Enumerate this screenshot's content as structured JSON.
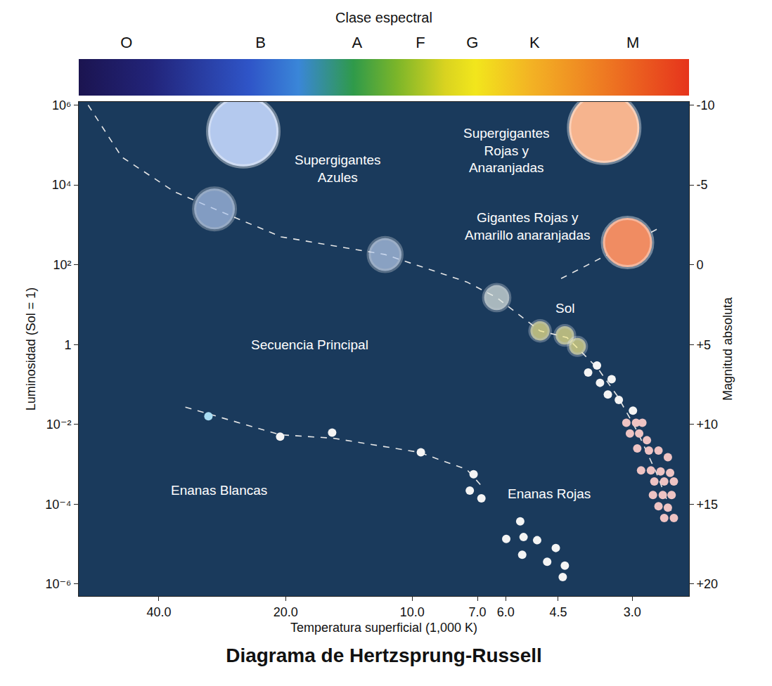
{
  "chart_data": {
    "type": "scatter",
    "title": "Diagrama de Hertzsprung-Russell",
    "xlabel": "Temperatura superficial (1,000 K)",
    "ylabel": "Luminosidad (Sol = 1)",
    "y2label": "Magnitud absoluta",
    "log": true,
    "grid": false,
    "xlim": [
      62,
      2.2
    ],
    "xticks": [
      {
        "value": 40,
        "label": "40.0"
      },
      {
        "value": 20,
        "label": "20.0"
      },
      {
        "value": 10,
        "label": "10.0"
      },
      {
        "value": 7,
        "label": "7.0"
      },
      {
        "value": 6,
        "label": "6.0"
      },
      4.5,
      {
        "value": 3,
        "label": "3.0"
      }
    ],
    "ylim": [
      5e-07,
      1200000
    ],
    "yticks": [
      {
        "value": 1e-06,
        "label": "10⁻⁶"
      },
      {
        "value": 0.0001,
        "label": "10⁻⁴"
      },
      {
        "value": 0.01,
        "label": "10⁻²"
      },
      1,
      {
        "value": 100,
        "label": "10²"
      },
      {
        "value": 10000,
        "label": "10⁴"
      },
      {
        "value": 1000000,
        "label": "10⁶"
      }
    ],
    "y2lim": [
      20.75,
      -10.2
    ],
    "y2ticks": [
      -10,
      -5,
      0,
      {
        "value": 5,
        "label": "+5"
      },
      {
        "value": 10,
        "label": "+10"
      },
      {
        "value": 15,
        "label": "+15"
      },
      {
        "value": 20,
        "label": "+20"
      }
    ],
    "spectral_class": {
      "title": "Clase espectral",
      "classes": [
        "O",
        "B",
        "A",
        "F",
        "G",
        "K",
        "M"
      ]
    },
    "annotations": [
      {
        "text": "Supergigantes\nAzules",
        "x": 15.0,
        "y": 25000
      },
      {
        "text": "Supergigantes\nRojas y\nAnaranjadas",
        "x": 5.96,
        "y": 74000
      },
      {
        "text": "Gigantes Rojas y\nAmarillo anaranjadas",
        "x": 5.31,
        "y": 900
      },
      {
        "text": "Sol",
        "x": 4.34,
        "y": 8
      },
      {
        "text": "Secuencia Principal",
        "x": 17.5,
        "y": 1
      },
      {
        "text": "Enanas Blancas",
        "x": 28.8,
        "y": 0.00022
      },
      {
        "text": "Enanas Rojas",
        "x": 4.73,
        "y": 0.00018
      }
    ],
    "series": [
      {
        "type": "line",
        "line_style": "dashed",
        "color": "#e6e6e6",
        "x": [
          58.9,
          49.0,
          36.7,
          29.5,
          20.5,
          11.6,
          7.42,
          6.3,
          4.97,
          4.29,
          3.62,
          3.25,
          2.92,
          2.63,
          2.39
        ],
        "values": [
          1000000,
          50000,
          6700,
          2500,
          500,
          180,
          37,
          15,
          2.2,
          1.5,
          0.25,
          0.05,
          0.0067,
          0.00061,
          4.5e-05
        ]
      },
      {
        "type": "line",
        "line_style": "dashed",
        "color": "#e6e6e6",
        "x": [
          34.6,
          20.6,
          15.4,
          9.64,
          7.42,
          6.89
        ],
        "values": [
          0.027,
          0.0055,
          0.0045,
          0.002,
          0.00074,
          0.00031
        ]
      },
      {
        "type": "line",
        "line_style": "dashed",
        "color": "#e6e6e6",
        "x": [
          4.43,
          2.55
        ],
        "values": [
          45,
          900
        ]
      },
      {
        "type": "scatter",
        "marker": "supergiant",
        "colors": [
          "#b4c9ee",
          "#f6b48e"
        ],
        "x": [
          25.2,
          3.5
        ],
        "values": [
          220000,
          270000
        ]
      },
      {
        "type": "scatter",
        "marker": "giant",
        "color": "#f08c62",
        "x": [
          3.08
        ],
        "values": [
          360
        ]
      },
      {
        "type": "scatter",
        "marker": "star",
        "colors": [
          "#aec6ee",
          "#b9cdee",
          "#e4ece6",
          "#f7ed8e",
          "#f7ed8e",
          "#f7ed8e"
        ],
        "x": [
          29.5,
          11.6,
          6.3,
          4.97,
          4.34,
          4.05
        ],
        "values": [
          2500,
          180,
          15,
          2.2,
          1.7,
          0.9
        ]
      },
      {
        "type": "scatter",
        "marker": "dot",
        "color": "#f4f4f4",
        "x": [
          3.82,
          3.64,
          3.58,
          3.36,
          3.43,
          3.23,
          2.99
        ],
        "values": [
          0.2,
          0.3,
          0.11,
          0.135,
          0.056,
          0.041,
          0.022
        ]
      },
      {
        "type": "scatter",
        "marker": "dot",
        "color": "#eec3c3",
        "x": [
          3.1,
          2.94,
          2.84,
          3.04,
          2.89,
          2.77,
          2.92,
          2.74,
          2.6,
          2.47,
          2.86,
          2.71,
          2.57,
          2.44,
          2.66,
          2.52,
          2.39,
          2.68,
          2.54,
          2.42,
          2.6,
          2.47,
          2.39,
          2.52
        ],
        "values": [
          0.011,
          0.011,
          0.011,
          0.0059,
          0.0059,
          0.004,
          0.0025,
          0.0022,
          0.0022,
          0.0015,
          0.0007,
          0.0007,
          0.00066,
          0.00061,
          0.00037,
          0.00037,
          0.00037,
          0.00017,
          0.00017,
          0.00017,
          8.9e-05,
          8.2e-05,
          4.5e-05,
          4.5e-05
        ]
      },
      {
        "type": "scatter",
        "marker": "dot",
        "colors": [
          "#a9dcf2",
          "#f4f4f4",
          "#f4f4f4",
          "#f4f4f4",
          "#f4f4f4",
          "#f4f4f4",
          "#f4f4f4"
        ],
        "x": [
          30.5,
          20.6,
          15.5,
          9.54,
          7.15,
          7.3,
          6.85
        ],
        "values": [
          0.016,
          0.0049,
          0.0062,
          0.002,
          0.00056,
          0.00022,
          0.00014
        ]
      },
      {
        "type": "scatter",
        "marker": "dot",
        "color": "#f4f4f4",
        "x": [
          5.54,
          5.98,
          5.44,
          5.05,
          5.48,
          4.78,
          4.56,
          4.34,
          4.39
        ],
        "values": [
          3.7e-05,
          1.35e-05,
          1.5e-05,
          1.25e-05,
          5.4e-06,
          3.6e-06,
          8e-06,
          2.9e-06,
          1.5e-06
        ]
      }
    ]
  }
}
